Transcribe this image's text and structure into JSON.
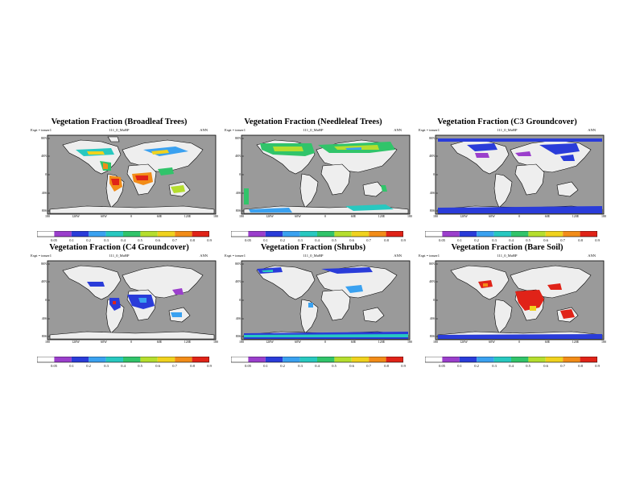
{
  "colors": {
    "ocean": "#9a9a9a",
    "land": "#eeeeee",
    "scale": [
      "#ffffff",
      "#9b3fcc",
      "#2a3cd9",
      "#3aa1f0",
      "#28c8c0",
      "#31c46a",
      "#b5de2e",
      "#f0d21e",
      "#f28c18",
      "#e02318"
    ]
  },
  "panels": [
    {
      "title": "Vegetation Fraction (Broadleaf Trees)",
      "expt": "Expt = teaser1",
      "run": "111_0_MoBP",
      "period": "ANN",
      "lat_labels": [
        "80N",
        "40N",
        "0",
        "40S",
        "80S"
      ],
      "lon_labels": [
        "180",
        "120W",
        "60W",
        "0",
        "60E",
        "120E",
        "180"
      ],
      "cbar_labels": [
        "0.05",
        "0.1",
        "0.2",
        "0.3",
        "0.4",
        "0.5",
        "0.6",
        "0.7",
        "0.8",
        "0.9"
      ]
    },
    {
      "title": "Vegetation Fraction (Needleleaf Trees)",
      "expt": "Expt = teaser1",
      "run": "111_0_MoBP",
      "period": "ANN",
      "lat_labels": [
        "80N",
        "40N",
        "0",
        "40S",
        "80S"
      ],
      "lon_labels": [
        "180",
        "120W",
        "60W",
        "0",
        "60E",
        "120E",
        "180"
      ],
      "cbar_labels": [
        "0.05",
        "0.1",
        "0.2",
        "0.3",
        "0.4",
        "0.5",
        "0.6",
        "0.7",
        "0.8",
        "0.9"
      ]
    },
    {
      "title": "Vegetation Fraction (C3 Groundcover)",
      "expt": "Expt = teaser1",
      "run": "111_0_MoBP",
      "period": "ANN",
      "lat_labels": [
        "80N",
        "40N",
        "0",
        "40S",
        "80S"
      ],
      "lon_labels": [
        "180",
        "120W",
        "60W",
        "0",
        "60E",
        "120E",
        "180"
      ],
      "cbar_labels": [
        "0.05",
        "0.1",
        "0.2",
        "0.3",
        "0.4",
        "0.5",
        "0.6",
        "0.7",
        "0.8",
        "0.9"
      ]
    },
    {
      "title": "Vegetation Fraction (C4 Groundcover)",
      "expt": "Expt = teaser1",
      "run": "111_0_MoBP",
      "period": "ANN",
      "lat_labels": [
        "80N",
        "40N",
        "0",
        "40S",
        "80S"
      ],
      "lon_labels": [
        "180",
        "120W",
        "60W",
        "0",
        "60E",
        "120E",
        "180"
      ],
      "cbar_labels": [
        "0.05",
        "0.1",
        "0.2",
        "0.3",
        "0.4",
        "0.5",
        "0.6",
        "0.7",
        "0.8",
        "0.9"
      ]
    },
    {
      "title": "Vegetation Fraction (Shrubs)",
      "expt": "Expt = teaser1",
      "run": "111_0_MoBP",
      "period": "ANN",
      "lat_labels": [
        "80N",
        "40N",
        "0",
        "40S",
        "80S"
      ],
      "lon_labels": [
        "180",
        "120W",
        "60W",
        "0",
        "60E",
        "120E",
        "180"
      ],
      "cbar_labels": [
        "0.05",
        "0.1",
        "0.2",
        "0.3",
        "0.4",
        "0.5",
        "0.6",
        "0.7",
        "0.8",
        "0.9"
      ]
    },
    {
      "title": "Vegetation Fraction (Bare Soil)",
      "expt": "Expt = teaser1",
      "run": "111_0_MoBP",
      "period": "ANN",
      "lat_labels": [
        "80N",
        "40N",
        "0",
        "40S",
        "80S"
      ],
      "lon_labels": [
        "180",
        "120W",
        "60W",
        "0",
        "60E",
        "120E",
        "180"
      ],
      "cbar_labels": [
        "0.05",
        "0.1",
        "0.2",
        "0.3",
        "0.4",
        "0.5",
        "0.6",
        "0.7",
        "0.8",
        "0.9"
      ]
    }
  ]
}
